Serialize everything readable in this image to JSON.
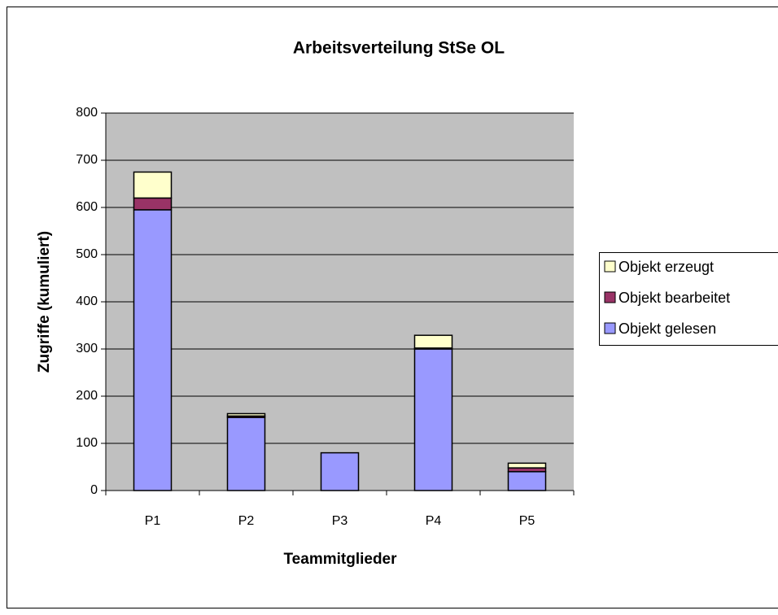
{
  "chart_data": {
    "type": "bar",
    "stacked": true,
    "title": "Arbeitsverteilung StSe OL",
    "x_label": "Teammitglieder",
    "y_label": "Zugriffe (kumuliert)",
    "categories": [
      "P1",
      "P2",
      "P3",
      "P4",
      "P5"
    ],
    "series": [
      {
        "name": "Objekt gelesen",
        "color": "#9999ff",
        "values": [
          595,
          155,
          80,
          300,
          40
        ]
      },
      {
        "name": "Objekt bearbeitet",
        "color": "#993366",
        "values": [
          25,
          3,
          0,
          2,
          8
        ]
      },
      {
        "name": "Objekt erzeugt",
        "color": "#ffffcc",
        "values": [
          55,
          5,
          0,
          27,
          10
        ]
      }
    ],
    "ylim": [
      0,
      800
    ],
    "yticks": [
      0,
      100,
      200,
      300,
      400,
      500,
      600,
      700,
      800
    ],
    "grid": true,
    "legend": "right"
  }
}
